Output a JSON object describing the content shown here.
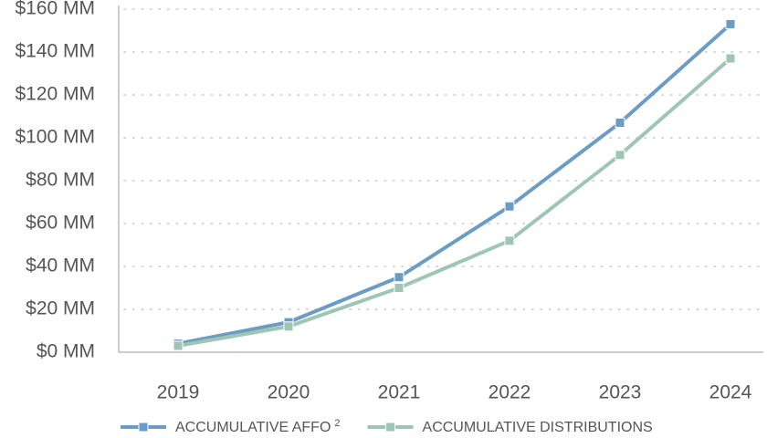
{
  "chart_data": {
    "type": "line",
    "categories": [
      "2019",
      "2020",
      "2021",
      "2022",
      "2023",
      "2024"
    ],
    "series": [
      {
        "name": "ACCUMULATIVE AFFO",
        "superscript": "2",
        "color": "#6b9cc4",
        "values": [
          4,
          14,
          35,
          68,
          107,
          153
        ]
      },
      {
        "name": "ACCUMULATIVE DISTRIBUTIONS",
        "color": "#9fc5b5",
        "values": [
          3,
          12,
          30,
          52,
          92,
          137
        ]
      }
    ],
    "ylim": [
      0,
      160
    ],
    "yticks": [
      {
        "value": 0,
        "label": "$0 MM"
      },
      {
        "value": 20,
        "label": "$20 MM"
      },
      {
        "value": 40,
        "label": "$40 MM"
      },
      {
        "value": 60,
        "label": "$60 MM"
      },
      {
        "value": 80,
        "label": "$80 MM"
      },
      {
        "value": 100,
        "label": "$100 MM"
      },
      {
        "value": 120,
        "label": "$120 MM"
      },
      {
        "value": 140,
        "label": "$140 MM"
      },
      {
        "value": 160,
        "label": "$160 MM"
      }
    ],
    "grid": true,
    "legend": "bottom"
  }
}
